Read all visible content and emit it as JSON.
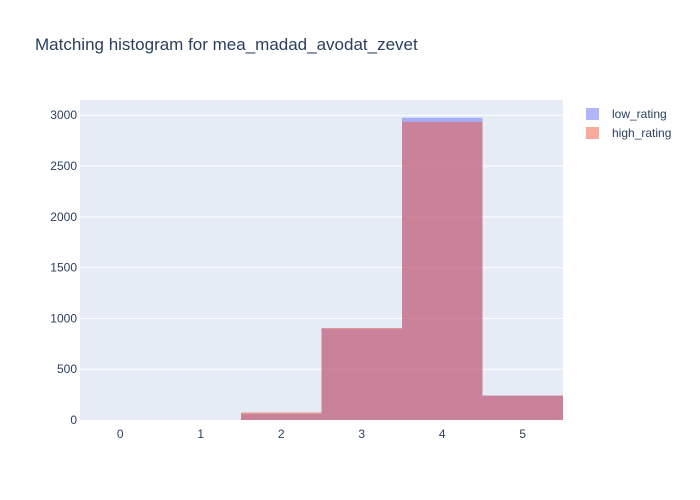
{
  "chart_data": {
    "type": "bar",
    "title": "Matching histogram for mea_madad_avodat_zevet",
    "xlabel": "",
    "ylabel": "",
    "categories": [
      "0",
      "1",
      "2",
      "3",
      "4",
      "5"
    ],
    "xlim": [
      -0.5,
      5.5
    ],
    "ylim": [
      0,
      3150
    ],
    "x_ticks": [
      "0",
      "1",
      "2",
      "3",
      "4",
      "5"
    ],
    "y_ticks": [
      "0",
      "500",
      "1000",
      "1500",
      "2000",
      "2500",
      "3000"
    ],
    "barmode": "overlay",
    "grid": true,
    "legend_position": "top-right",
    "series": [
      {
        "name": "low_rating",
        "color": "#636efa",
        "opacity": 0.5,
        "values": [
          0,
          0,
          60,
          900,
          2975,
          240
        ]
      },
      {
        "name": "high_rating",
        "color": "#ef553b",
        "opacity": 0.5,
        "values": [
          0,
          0,
          75,
          905,
          2935,
          240
        ]
      }
    ],
    "plot_background": "#e5ecf6",
    "text_color": "#2a3f5f"
  }
}
